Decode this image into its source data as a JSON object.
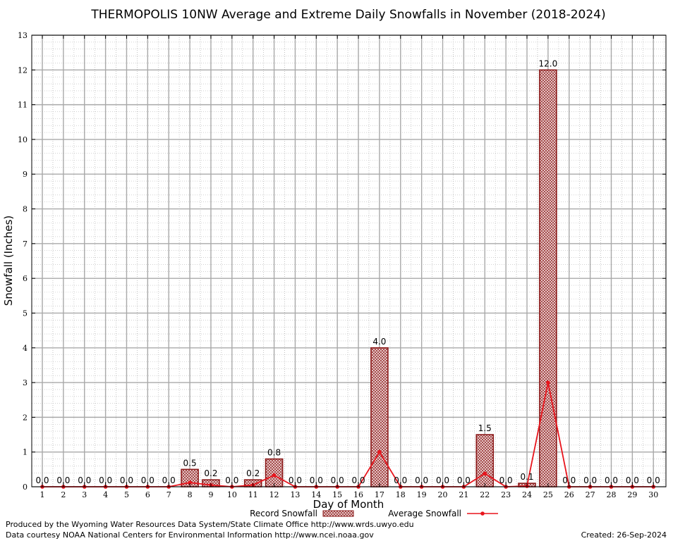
{
  "chart_data": {
    "type": "bar",
    "title": "THERMOPOLIS 10NW Average and Extreme Daily Snowfalls in November (2018-2024)",
    "xlabel": "Day of Month",
    "ylabel": "Snowfall (Inches)",
    "ylim": [
      0,
      13
    ],
    "yticks": [
      "0",
      "1",
      "2",
      "3",
      "4",
      "5",
      "6",
      "7",
      "8",
      "9",
      "10",
      "11",
      "12",
      "13"
    ],
    "categories": [
      "1",
      "2",
      "3",
      "4",
      "5",
      "6",
      "7",
      "8",
      "9",
      "10",
      "11",
      "12",
      "13",
      "14",
      "15",
      "16",
      "17",
      "18",
      "19",
      "20",
      "21",
      "22",
      "23",
      "24",
      "25",
      "26",
      "27",
      "28",
      "29",
      "30"
    ],
    "series": [
      {
        "name": "Record Snowfall",
        "kind": "bar",
        "values": [
          0,
          0,
          0,
          0,
          0,
          0,
          0,
          0.5,
          0.2,
          0,
          0.2,
          0.8,
          0,
          0,
          0,
          0,
          4.0,
          0,
          0,
          0,
          0,
          1.5,
          0,
          0.1,
          12.0,
          0,
          0,
          0,
          0,
          0
        ],
        "labels": [
          "0.0",
          "0.0",
          "0.0",
          "0.0",
          "0.0",
          "0.0",
          "0.0",
          "0.5",
          "0.2",
          "0.0",
          "0.2",
          "0.8",
          "0.0",
          "0.0",
          "0.0",
          "0.0",
          "4.0",
          "0.0",
          "0.0",
          "0.0",
          "0.0",
          "1.5",
          "0.0",
          "0.1",
          "12.0",
          "0.0",
          "0.0",
          "0.0",
          "0.0",
          "0.0"
        ],
        "color": "#8b1a1a"
      },
      {
        "name": "Average Snowfall",
        "kind": "line",
        "values": [
          0,
          0,
          0,
          0,
          0,
          0,
          0,
          0.12,
          0.05,
          0,
          0.05,
          0.33,
          0,
          0,
          0,
          0,
          1.0,
          0,
          0,
          0,
          0,
          0.38,
          0,
          0.02,
          3.0,
          0,
          0,
          0,
          0,
          0
        ],
        "color": "#e8141c"
      }
    ],
    "grid": true,
    "legend_position": "bottom"
  },
  "footer": {
    "line1": "Produced by the Wyoming Water Resources Data System/State Climate Office http://www.wrds.uwyo.edu",
    "line2": "Data courtesy NOAA National Centers for Environmental Information http://www.ncei.noaa.gov",
    "created": "Created:  26-Sep-2024"
  }
}
